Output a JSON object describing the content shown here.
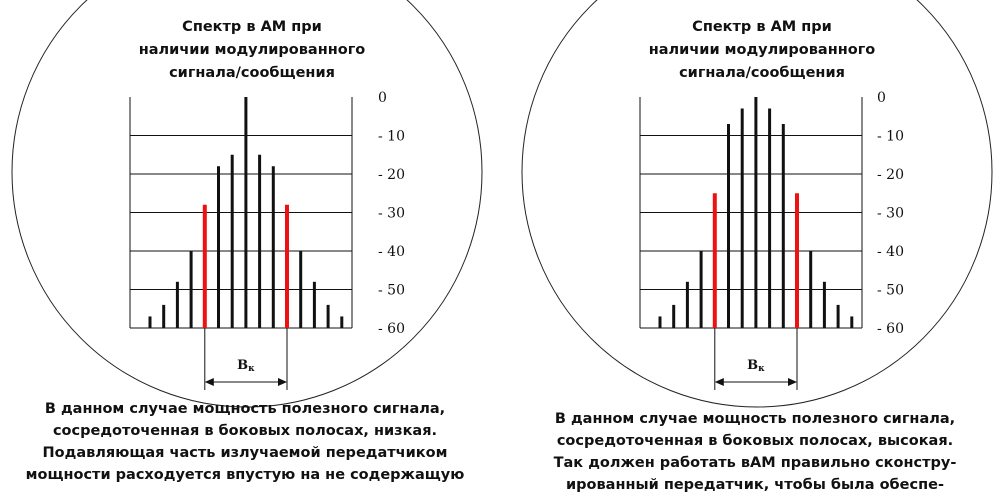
{
  "panels": [
    {
      "title_lines": [
        "Спектр в АМ при",
        "наличии модулированного",
        "сигнала/сообщения"
      ],
      "y_tick_labels": [
        "0",
        "- 10",
        "- 20",
        "- 30",
        "- 40",
        "- 50",
        "- 60"
      ],
      "bandwidth_label": "B",
      "bandwidth_subscript": "к",
      "spectrum_db": [
        -57,
        -54,
        -48,
        -40,
        -28,
        -18,
        -15,
        0,
        -15,
        -18,
        -28,
        -40,
        -48,
        -54,
        -57
      ],
      "highlighted": [
        4,
        10
      ],
      "caption_lines": [
        "В данном случае мощность полезного сигнала,",
        "сосредоточенная в боковых полосах, низкая.",
        "Подавляющая часть излучаемой передатчиком",
        "мощности расходуется впустую на не содержащую"
      ]
    },
    {
      "title_lines": [
        "Спектр в АМ при",
        "наличии модулированного",
        "сигнала/сообщения"
      ],
      "y_tick_labels": [
        "0",
        "- 10",
        "- 20",
        "- 30",
        "- 40",
        "- 50",
        "- 60"
      ],
      "bandwidth_label": "B",
      "bandwidth_subscript": "к",
      "spectrum_db": [
        -57,
        -54,
        -48,
        -40,
        -25,
        -7,
        -3,
        0,
        -3,
        -7,
        -25,
        -40,
        -48,
        -54,
        -57
      ],
      "highlighted": [
        4,
        10
      ],
      "caption_lines": [
        "В данном случае мощность полезного сигнала,",
        "сосредоточенная в боковых полосах, высокая.",
        "Так должен работать вАМ правильно сконстру-",
        "ированный передатчик, чтобы была обеспе-"
      ]
    }
  ],
  "colors": {
    "bar": "#111111",
    "highlight": "#ee1111",
    "grid": "#111111"
  }
}
